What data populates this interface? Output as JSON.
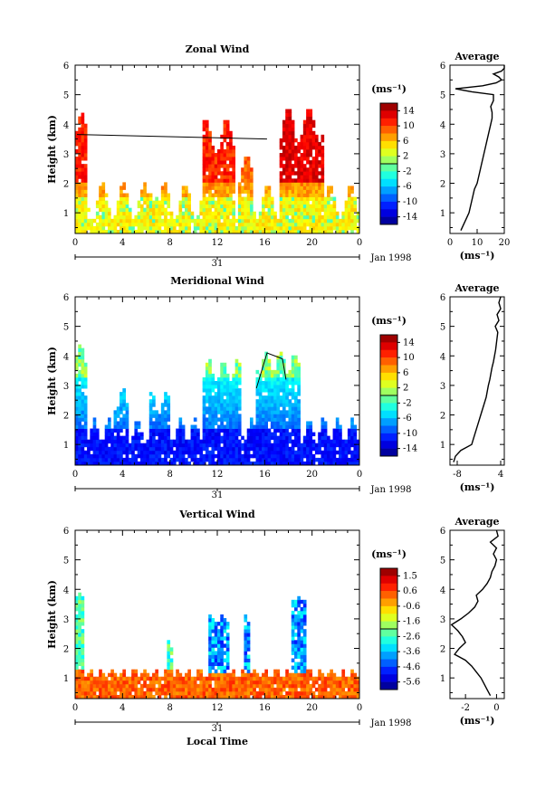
{
  "figure": {
    "x_label": "Local Time",
    "date_label": "Jan 1998",
    "day_label": "31",
    "average_title": "Average",
    "unit_label": "(ms⁻¹)",
    "height_label": "Height (km)"
  },
  "chart_data": [
    {
      "type": "heatmap",
      "title": "Zonal Wind",
      "xlabel": "Local Time",
      "ylabel": "Height (km)",
      "x_ticks": [
        "0",
        "4",
        "8",
        "12",
        "16",
        "20",
        "0"
      ],
      "y_ticks": [
        "1",
        "2",
        "3",
        "4",
        "5",
        "6"
      ],
      "xlim": [
        0,
        24
      ],
      "ylim": [
        0.3,
        6
      ],
      "colorbar": {
        "unit": "(ms⁻¹)",
        "ticks": [
          "14",
          "10",
          "6",
          "2",
          "-2",
          "-6",
          "-10",
          "-14"
        ],
        "range": [
          -16,
          16
        ]
      },
      "profile": {
        "title": "Average",
        "xlabel": "(ms⁻¹)",
        "x_ticks": [
          "0",
          "10",
          "20"
        ],
        "xlim": [
          0,
          20
        ],
        "height": [
          0.4,
          0.6,
          0.8,
          1.0,
          1.2,
          1.4,
          1.6,
          1.8,
          2.0,
          2.2,
          2.4,
          2.6,
          2.8,
          3.0,
          3.2,
          3.4,
          3.6,
          3.8,
          4.0,
          4.2,
          4.4,
          4.6,
          4.8,
          5.0,
          5.1,
          5.2,
          5.3,
          5.4,
          5.5,
          5.6,
          5.7,
          5.8,
          5.9,
          6.0
        ],
        "values": [
          4,
          5,
          6,
          7,
          7.5,
          8,
          8.5,
          9,
          10,
          10.5,
          11,
          11.5,
          12,
          12.5,
          13,
          13.5,
          14,
          14.5,
          15,
          15.5,
          15.5,
          15,
          16,
          16,
          8,
          2,
          12,
          17,
          19,
          18,
          16,
          19,
          20,
          20
        ]
      }
    },
    {
      "type": "heatmap",
      "title": "Meridional Wind",
      "xlabel": "Local Time",
      "ylabel": "Height (km)",
      "x_ticks": [
        "0",
        "4",
        "8",
        "12",
        "16",
        "20",
        "0"
      ],
      "y_ticks": [
        "1",
        "2",
        "3",
        "4",
        "5",
        "6"
      ],
      "xlim": [
        0,
        24
      ],
      "ylim": [
        0.3,
        6
      ],
      "colorbar": {
        "unit": "(ms⁻¹)",
        "ticks": [
          "14",
          "10",
          "6",
          "2",
          "-2",
          "-6",
          "-10",
          "-14"
        ],
        "range": [
          -16,
          16
        ]
      },
      "profile": {
        "title": "Average",
        "xlabel": "(ms⁻¹)",
        "x_ticks": [
          "-8",
          "4"
        ],
        "xlim": [
          -10,
          5
        ],
        "height": [
          0.4,
          0.6,
          0.8,
          1.0,
          1.2,
          1.4,
          1.6,
          1.8,
          2.0,
          2.2,
          2.4,
          2.6,
          2.8,
          3.0,
          3.2,
          3.4,
          3.6,
          3.8,
          4.0,
          4.2,
          4.4,
          4.6,
          4.8,
          5.0,
          5.2,
          5.4,
          5.6,
          5.8,
          6.0
        ],
        "values": [
          -9,
          -8.5,
          -7,
          -4,
          -3.5,
          -3,
          -2.5,
          -2,
          -1.5,
          -1,
          -0.5,
          0,
          0.3,
          0.6,
          1,
          1.3,
          1.6,
          2,
          2.3,
          2.6,
          2.8,
          3,
          3.2,
          2.5,
          3.5,
          3,
          4,
          3.5,
          4
        ]
      }
    },
    {
      "type": "heatmap",
      "title": "Vertical Wind",
      "xlabel": "Local Time",
      "ylabel": "Height (km)",
      "x_ticks": [
        "0",
        "4",
        "8",
        "12",
        "16",
        "20",
        "0"
      ],
      "y_ticks": [
        "1",
        "2",
        "3",
        "4",
        "5",
        "6"
      ],
      "xlim": [
        0,
        24
      ],
      "ylim": [
        0.3,
        6
      ],
      "colorbar": {
        "unit": "(ms⁻¹)",
        "ticks": [
          "1.5",
          "0.6",
          "-0.6",
          "-1.6",
          "-2.6",
          "-3.6",
          "-4.6",
          "-5.6"
        ],
        "range": [
          -6,
          2
        ]
      },
      "profile": {
        "title": "Average",
        "xlabel": "(ms⁻¹)",
        "x_ticks": [
          "-2",
          "0"
        ],
        "xlim": [
          -3,
          0.5
        ],
        "height": [
          0.4,
          0.6,
          0.8,
          1.0,
          1.2,
          1.4,
          1.6,
          1.8,
          2.0,
          2.2,
          2.4,
          2.6,
          2.8,
          3.0,
          3.2,
          3.4,
          3.6,
          3.8,
          4.0,
          4.2,
          4.4,
          4.6,
          4.8,
          5.0,
          5.2,
          5.4,
          5.6,
          5.8,
          6.0
        ],
        "values": [
          -0.4,
          -0.6,
          -0.8,
          -1.0,
          -1.3,
          -1.6,
          -2.0,
          -2.7,
          -2.4,
          -2.0,
          -2.2,
          -2.5,
          -2.9,
          -2.3,
          -1.8,
          -1.4,
          -1.2,
          -1.3,
          -0.9,
          -0.6,
          -0.4,
          -0.3,
          -0.1,
          0.0,
          -0.2,
          0.0,
          -0.4,
          0.1,
          0.0
        ]
      }
    }
  ]
}
